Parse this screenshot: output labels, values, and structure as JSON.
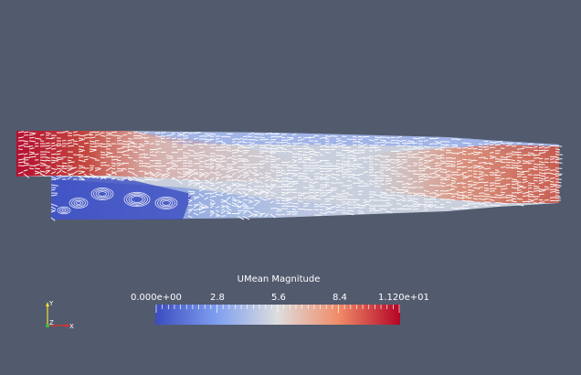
{
  "scene": {
    "background": "#525a6e",
    "colormap": [
      "#3b4cc0",
      "#7f9ff0",
      "#dddddd",
      "#f08b67",
      "#b40426"
    ],
    "arrow_color": "#ffffff"
  },
  "legend": {
    "title": "UMean Magnitude",
    "min_label": "0.000e+00",
    "t1": "2.8",
    "t2": "5.6",
    "t3": "8.4",
    "max_label": "1.120e+01"
  },
  "axes": {
    "x": "X",
    "y": "Y",
    "z": "Z"
  }
}
